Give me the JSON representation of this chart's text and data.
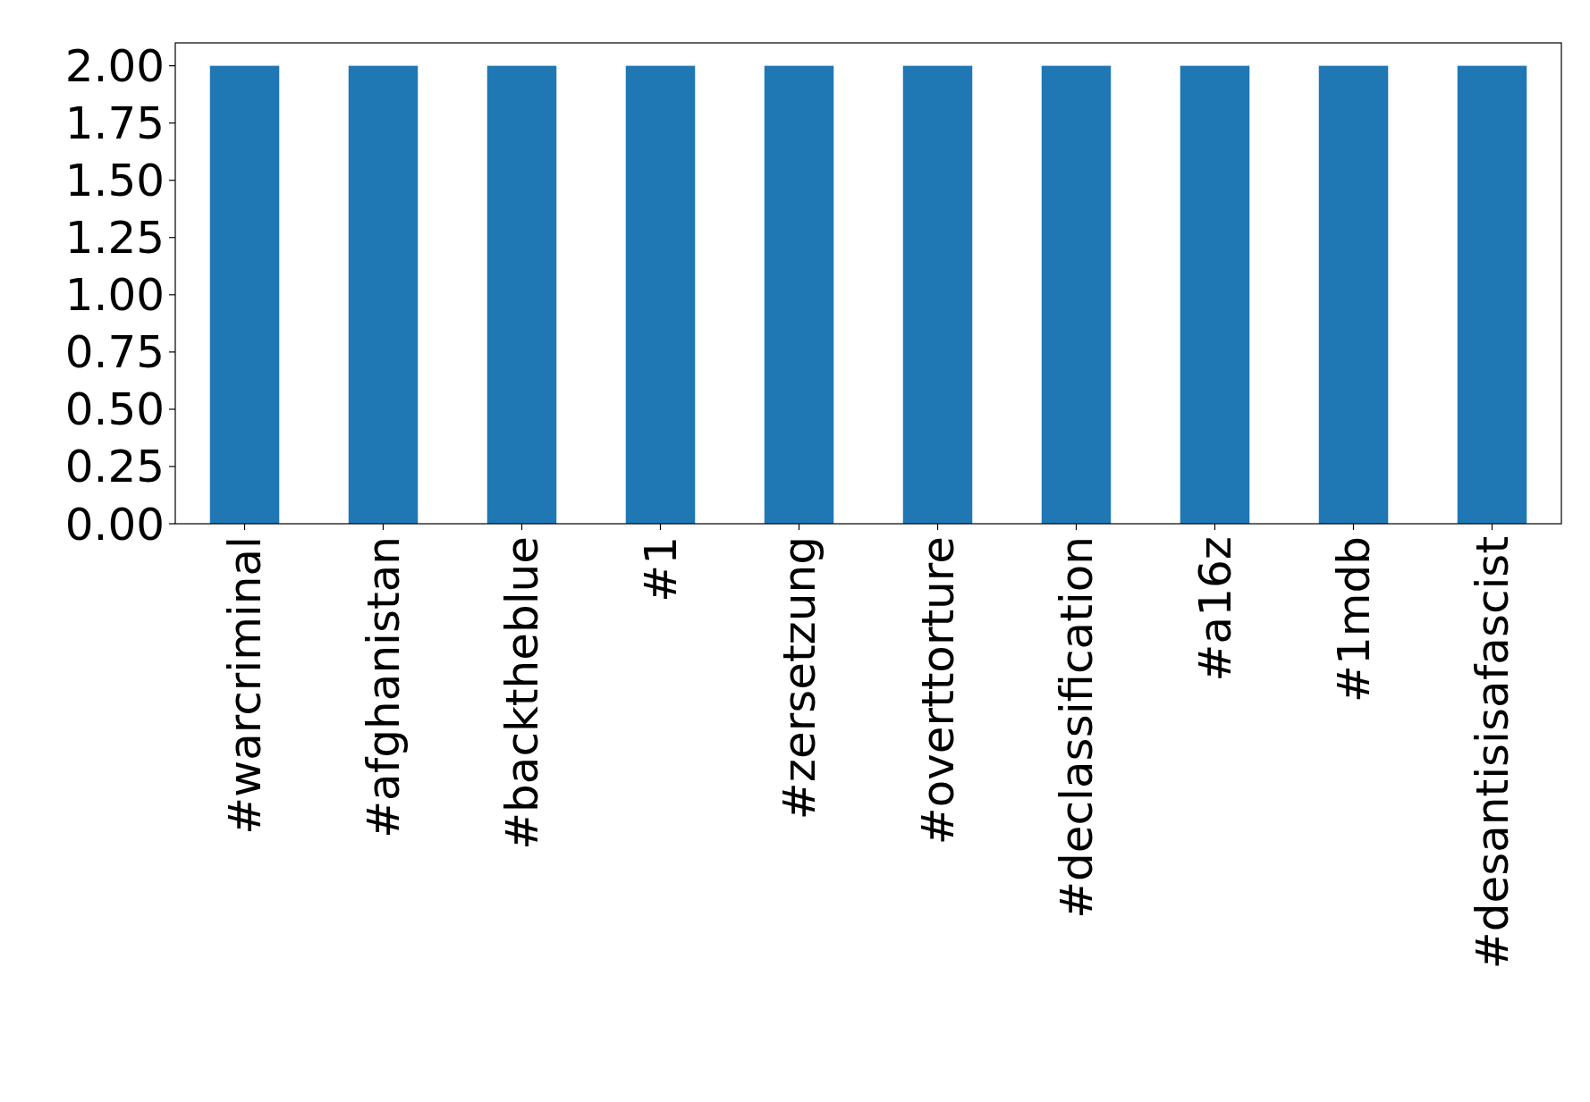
{
  "chart_data": {
    "type": "bar",
    "categories": [
      "#warcriminal",
      "#afghanistan",
      "#backtheblue",
      "#1",
      "#zersetzung",
      "#overttorture",
      "#declassification",
      "#a16z",
      "#1mdb",
      "#desantisisafascist"
    ],
    "values": [
      2,
      2,
      2,
      2,
      2,
      2,
      2,
      2,
      2,
      2
    ],
    "color": "#1f77b4",
    "ylim": [
      0,
      2.1
    ],
    "yticks": [
      {
        "value": 0,
        "label": "0.00"
      },
      {
        "value": 0.25,
        "label": "0.25"
      },
      {
        "value": 0.5,
        "label": "0.50"
      },
      {
        "value": 0.75,
        "label": "0.75"
      },
      {
        "value": 1,
        "label": "1.00"
      },
      {
        "value": 1.25,
        "label": "1.25"
      },
      {
        "value": 1.5,
        "label": "1.50"
      },
      {
        "value": 1.75,
        "label": "1.75"
      },
      {
        "value": 2,
        "label": "2.00"
      }
    ],
    "grid": false
  }
}
